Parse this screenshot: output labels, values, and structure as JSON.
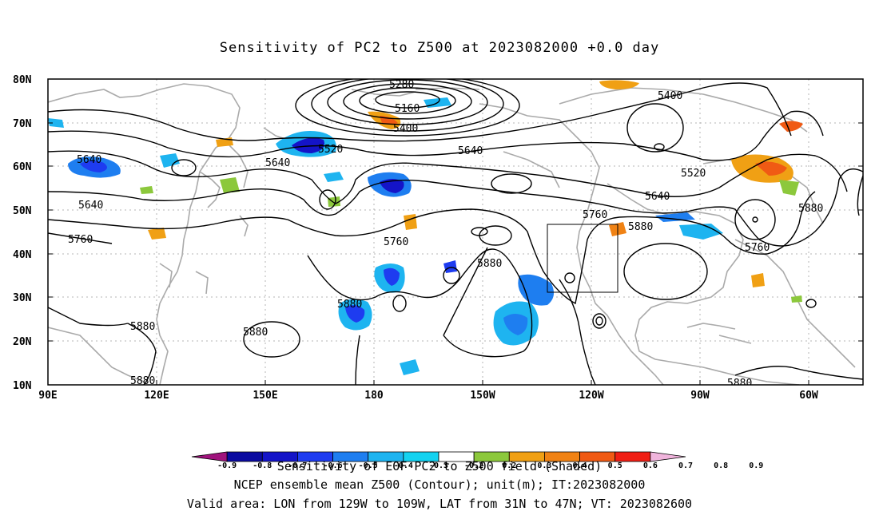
{
  "title": "Sensitivity of PC2 to Z500 at 2023082000 +0.0 day",
  "footer": {
    "line1": "Sensitivity of EOF PC2 to Z500 field (Shaded)",
    "line2": "NCEP ensemble mean Z500 (Contour); unit(m); IT:2023082000",
    "line3": "Valid area: LON from 129W to 109W, LAT from 31N to 47N; VT: 2023082600"
  },
  "map": {
    "lat_labels": [
      "80N",
      "70N",
      "60N",
      "50N",
      "40N",
      "30N",
      "20N",
      "10N"
    ],
    "lon_labels": [
      "90E",
      "120E",
      "150E",
      "180",
      "150W",
      "120W",
      "90W",
      "60W"
    ],
    "lon_range": [
      90,
      315
    ],
    "lat_range": [
      10,
      80
    ],
    "valid_box": {
      "lon_west": -129,
      "lon_east": -109,
      "lat_south": 31,
      "lat_north": 47
    },
    "contour_labels": [
      {
        "text": "5280",
        "lon": "165W-ish",
        "id": "c5280"
      },
      {
        "text": "5160",
        "id": "c5160"
      },
      {
        "text": "5400",
        "id": "c5400a"
      },
      {
        "text": "5400",
        "id": "c5400b"
      },
      {
        "text": "5520",
        "id": "c5520a"
      },
      {
        "text": "5520",
        "id": "c5520b"
      },
      {
        "text": "5640",
        "id": "c5640a"
      },
      {
        "text": "5640",
        "id": "c5640b"
      },
      {
        "text": "5640",
        "id": "c5640c"
      },
      {
        "text": "5640",
        "id": "c5640d"
      },
      {
        "text": "5640",
        "id": "c5640e"
      },
      {
        "text": "5760",
        "id": "c5760a"
      },
      {
        "text": "5760",
        "id": "c5760b"
      },
      {
        "text": "5760",
        "id": "c5760c"
      },
      {
        "text": "5760",
        "id": "c5760d"
      },
      {
        "text": "5880",
        "id": "c5880a"
      },
      {
        "text": "5880",
        "id": "c5880b"
      },
      {
        "text": "5880",
        "id": "c5880c"
      },
      {
        "text": "5880",
        "id": "c5880d"
      },
      {
        "text": "5880",
        "id": "c5880e"
      },
      {
        "text": "5880",
        "id": "c5880f"
      },
      {
        "text": "5880",
        "id": "c5880g"
      },
      {
        "text": "5880",
        "id": "c5880h"
      }
    ]
  },
  "colorbar": {
    "ticks": [
      "-0.9",
      "-0.8",
      "-0.7",
      "-0.6",
      "-0.5",
      "-0.4",
      "-0.3",
      "-0.2",
      "0.2",
      "0.3",
      "0.4",
      "0.5",
      "0.6",
      "0.7",
      "0.8",
      "0.9"
    ],
    "colors": [
      "#a0137d",
      "#0a0aa0",
      "#1414c8",
      "#1e3cf0",
      "#1e7ef0",
      "#1eb4f0",
      "#14d2f0",
      "#ffffff",
      "#8cc83c",
      "#f0a014",
      "#f08214",
      "#f05a14",
      "#f01e14",
      "#f0b4dc"
    ]
  }
}
